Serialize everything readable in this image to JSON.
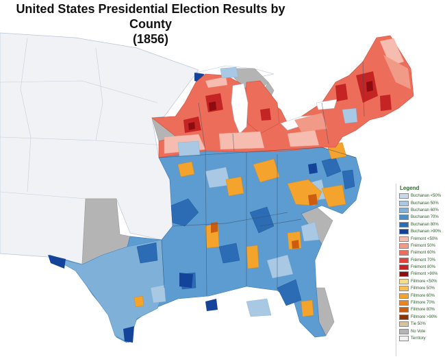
{
  "title": {
    "line1": "United States Presidential Election Results by County",
    "line2": "(1856)"
  },
  "legend": {
    "title": "Legend",
    "entries": [
      {
        "label": "Buchanan <50%",
        "color": "#c8d8ec"
      },
      {
        "label": "Buchanan 50%",
        "color": "#a8c8e4"
      },
      {
        "label": "Buchanan 60%",
        "color": "#7fb0d8"
      },
      {
        "label": "Buchanan 70%",
        "color": "#4a8cc8"
      },
      {
        "label": "Buchanan 80%",
        "color": "#2c6cb4"
      },
      {
        "label": "Buchanan >90%",
        "color": "#14449a"
      },
      {
        "label": "Frémont <50%",
        "color": "#f6bcb0"
      },
      {
        "label": "Frémont 50%",
        "color": "#f29a88"
      },
      {
        "label": "Frémont 60%",
        "color": "#ec6e5a"
      },
      {
        "label": "Frémont 70%",
        "color": "#e04438"
      },
      {
        "label": "Frémont 80%",
        "color": "#c42424"
      },
      {
        "label": "Frémont >90%",
        "color": "#8c0c10"
      },
      {
        "label": "Fillmore <50%",
        "color": "#f8dc8c"
      },
      {
        "label": "Fillmore 50%",
        "color": "#f8c050"
      },
      {
        "label": "Fillmore 60%",
        "color": "#f4a42c"
      },
      {
        "label": "Fillmore 70%",
        "color": "#ec8420"
      },
      {
        "label": "Fillmore 80%",
        "color": "#cc5c10"
      },
      {
        "label": "Fillmore >90%",
        "color": "#8c3404"
      },
      {
        "label": "Tie 50%",
        "color": "#d6c4a0"
      },
      {
        "label": "No Vote",
        "color": "#b4b4b4"
      },
      {
        "label": "Territory",
        "color": "#f0f2f6"
      }
    ]
  }
}
